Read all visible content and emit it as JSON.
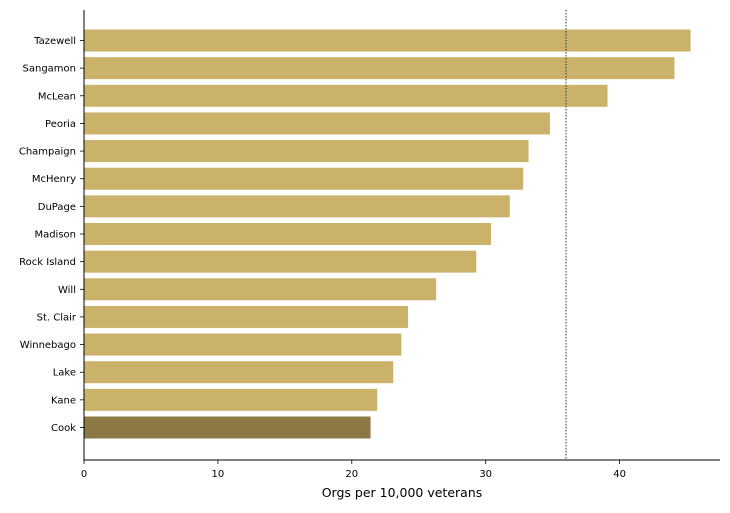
{
  "chart_data": {
    "type": "bar",
    "orientation": "horizontal",
    "title": "",
    "xlabel": "Orgs per 10,000 veterans",
    "ylabel": "",
    "xlim": [
      0,
      47.5
    ],
    "xticks": [
      0,
      10,
      20,
      30,
      40
    ],
    "reference_line": {
      "x": 36,
      "style": "dotted",
      "color": "#333333"
    },
    "grid": false,
    "categories": [
      "Tazewell",
      "Sangamon",
      "McLean",
      "Peoria",
      "Champaign",
      "McHenry",
      "DuPage",
      "Madison",
      "Rock Island",
      "Will",
      "St. Clair",
      "Winnebago",
      "Lake",
      "Kane",
      "Cook"
    ],
    "values": [
      45.3,
      44.1,
      39.1,
      34.8,
      33.2,
      32.8,
      31.8,
      30.4,
      29.3,
      26.3,
      24.2,
      23.7,
      23.1,
      21.9,
      21.4
    ],
    "colors": {
      "default": "#cbb26a",
      "highlight": "#8b7845",
      "highlight_category": "Cook"
    }
  }
}
